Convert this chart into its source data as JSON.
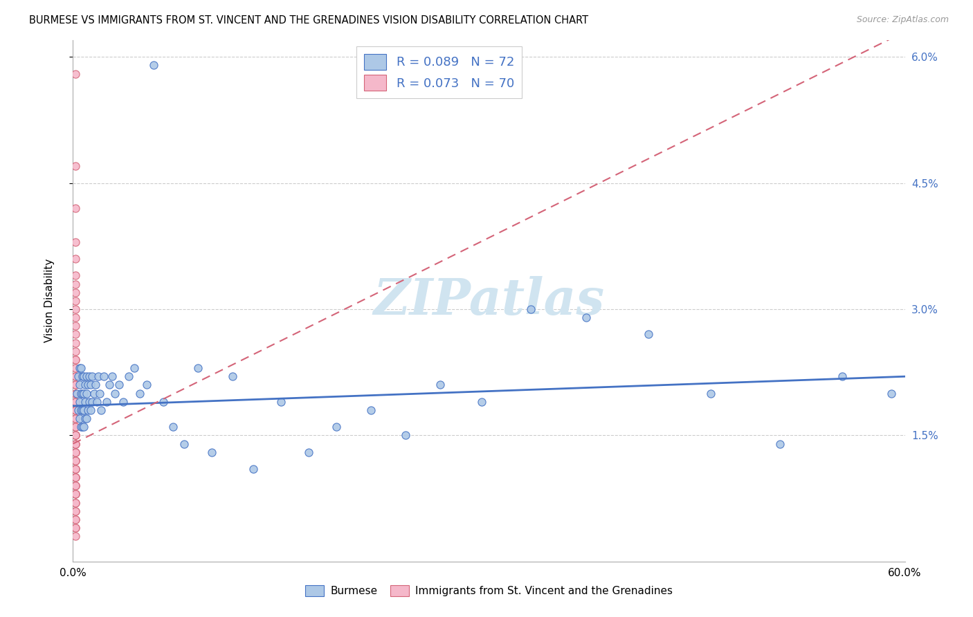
{
  "title": "BURMESE VS IMMIGRANTS FROM ST. VINCENT AND THE GRENADINES VISION DISABILITY CORRELATION CHART",
  "source": "Source: ZipAtlas.com",
  "ylabel": "Vision Disability",
  "xlim": [
    0.0,
    0.6
  ],
  "ylim": [
    0.0,
    0.062
  ],
  "yticklabels_right": [
    "1.5%",
    "3.0%",
    "4.5%",
    "6.0%"
  ],
  "yticks_right": [
    0.015,
    0.03,
    0.045,
    0.06
  ],
  "legend_blue_R": "0.089",
  "legend_blue_N": "72",
  "legend_pink_R": "0.073",
  "legend_pink_N": "70",
  "burmese_color": "#adc8e6",
  "svg_color": "#f5b8ca",
  "trend_blue": "#4472c4",
  "trend_pink": "#d46478",
  "watermark_text": "ZIPatlas",
  "watermark_color": "#d0e4f0",
  "legend_label_burmese": "Burmese",
  "legend_label_svg": "Immigrants from St. Vincent and the Grenadines",
  "burmese_x": [
    0.003,
    0.004,
    0.004,
    0.005,
    0.005,
    0.005,
    0.005,
    0.006,
    0.006,
    0.006,
    0.006,
    0.007,
    0.007,
    0.007,
    0.007,
    0.008,
    0.008,
    0.008,
    0.008,
    0.009,
    0.009,
    0.009,
    0.01,
    0.01,
    0.01,
    0.011,
    0.011,
    0.012,
    0.012,
    0.013,
    0.013,
    0.014,
    0.014,
    0.015,
    0.016,
    0.017,
    0.018,
    0.019,
    0.02,
    0.022,
    0.024,
    0.026,
    0.028,
    0.03,
    0.033,
    0.036,
    0.04,
    0.044,
    0.048,
    0.053,
    0.058,
    0.065,
    0.072,
    0.08,
    0.09,
    0.1,
    0.115,
    0.13,
    0.15,
    0.17,
    0.19,
    0.215,
    0.24,
    0.265,
    0.295,
    0.33,
    0.37,
    0.415,
    0.46,
    0.51,
    0.555,
    0.59
  ],
  "burmese_y": [
    0.02,
    0.022,
    0.018,
    0.023,
    0.021,
    0.019,
    0.017,
    0.023,
    0.02,
    0.018,
    0.016,
    0.022,
    0.02,
    0.018,
    0.016,
    0.022,
    0.02,
    0.018,
    0.016,
    0.021,
    0.019,
    0.017,
    0.022,
    0.02,
    0.017,
    0.021,
    0.018,
    0.022,
    0.019,
    0.021,
    0.018,
    0.022,
    0.019,
    0.02,
    0.021,
    0.019,
    0.022,
    0.02,
    0.018,
    0.022,
    0.019,
    0.021,
    0.022,
    0.02,
    0.021,
    0.019,
    0.022,
    0.023,
    0.02,
    0.021,
    0.059,
    0.019,
    0.016,
    0.014,
    0.023,
    0.013,
    0.022,
    0.011,
    0.019,
    0.013,
    0.016,
    0.018,
    0.015,
    0.021,
    0.019,
    0.03,
    0.029,
    0.027,
    0.02,
    0.014,
    0.022,
    0.02
  ],
  "svg_x": [
    0.002,
    0.002,
    0.002,
    0.002,
    0.002,
    0.002,
    0.002,
    0.002,
    0.002,
    0.002,
    0.002,
    0.002,
    0.002,
    0.002,
    0.002,
    0.002,
    0.002,
    0.002,
    0.002,
    0.002,
    0.002,
    0.002,
    0.002,
    0.002,
    0.002,
    0.002,
    0.002,
    0.002,
    0.002,
    0.002,
    0.002,
    0.002,
    0.002,
    0.002,
    0.002,
    0.002,
    0.002,
    0.002,
    0.002,
    0.002,
    0.002,
    0.002,
    0.002,
    0.002,
    0.002,
    0.002,
    0.002,
    0.002,
    0.002,
    0.002,
    0.002,
    0.002,
    0.002,
    0.002,
    0.002,
    0.002,
    0.002,
    0.002,
    0.002,
    0.002,
    0.002,
    0.002,
    0.002,
    0.002,
    0.002,
    0.002,
    0.002,
    0.002,
    0.002,
    0.002
  ],
  "svg_y": [
    0.058,
    0.047,
    0.042,
    0.038,
    0.036,
    0.034,
    0.033,
    0.032,
    0.031,
    0.03,
    0.029,
    0.028,
    0.027,
    0.026,
    0.025,
    0.024,
    0.024,
    0.023,
    0.022,
    0.022,
    0.021,
    0.021,
    0.02,
    0.02,
    0.019,
    0.019,
    0.019,
    0.018,
    0.018,
    0.018,
    0.017,
    0.017,
    0.017,
    0.016,
    0.016,
    0.016,
    0.015,
    0.015,
    0.015,
    0.015,
    0.014,
    0.014,
    0.014,
    0.013,
    0.013,
    0.013,
    0.012,
    0.012,
    0.012,
    0.011,
    0.011,
    0.011,
    0.01,
    0.01,
    0.01,
    0.009,
    0.009,
    0.009,
    0.008,
    0.008,
    0.008,
    0.007,
    0.007,
    0.006,
    0.006,
    0.005,
    0.005,
    0.004,
    0.004,
    0.003
  ]
}
